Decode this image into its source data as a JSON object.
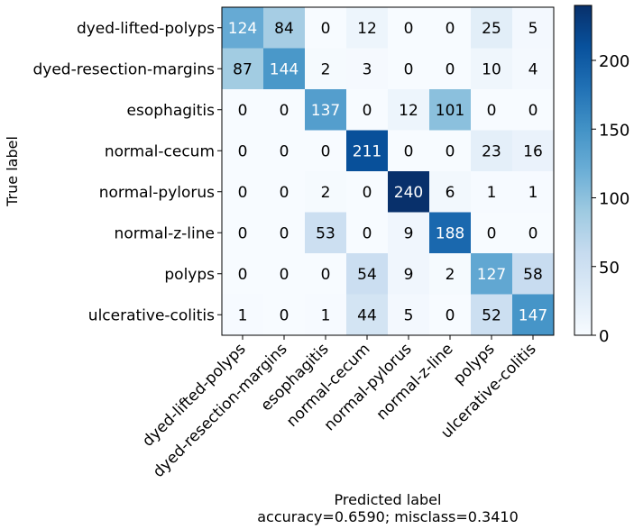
{
  "chart_data": {
    "type": "heatmap",
    "title": "",
    "xlabel": "Predicted label",
    "xlabel_sub": "accuracy=0.6590; misclass=0.3410",
    "ylabel": "True label",
    "rows": [
      "dyed-lifted-polyps",
      "dyed-resection-margins",
      "esophagitis",
      "normal-cecum",
      "normal-pylorus",
      "normal-z-line",
      "polyps",
      "ulcerative-colitis"
    ],
    "columns": [
      "dyed-lifted-polyps",
      "dyed-resection-margins",
      "esophagitis",
      "normal-cecum",
      "normal-pylorus",
      "normal-z-line",
      "polyps",
      "ulcerative-colitis"
    ],
    "values": [
      [
        124,
        84,
        0,
        12,
        0,
        0,
        25,
        5
      ],
      [
        87,
        144,
        2,
        3,
        0,
        0,
        10,
        4
      ],
      [
        0,
        0,
        137,
        0,
        12,
        101,
        0,
        0
      ],
      [
        0,
        0,
        0,
        211,
        0,
        0,
        23,
        16
      ],
      [
        0,
        0,
        2,
        0,
        240,
        6,
        1,
        1
      ],
      [
        0,
        0,
        53,
        0,
        9,
        188,
        0,
        0
      ],
      [
        0,
        0,
        0,
        54,
        9,
        2,
        127,
        58
      ],
      [
        1,
        0,
        1,
        44,
        5,
        0,
        52,
        147
      ]
    ],
    "value_range": [
      0,
      240
    ],
    "colorbar": {
      "ticks": [
        0,
        50,
        100,
        150,
        200
      ],
      "colormap": "Blues"
    },
    "text_threshold": 120
  }
}
